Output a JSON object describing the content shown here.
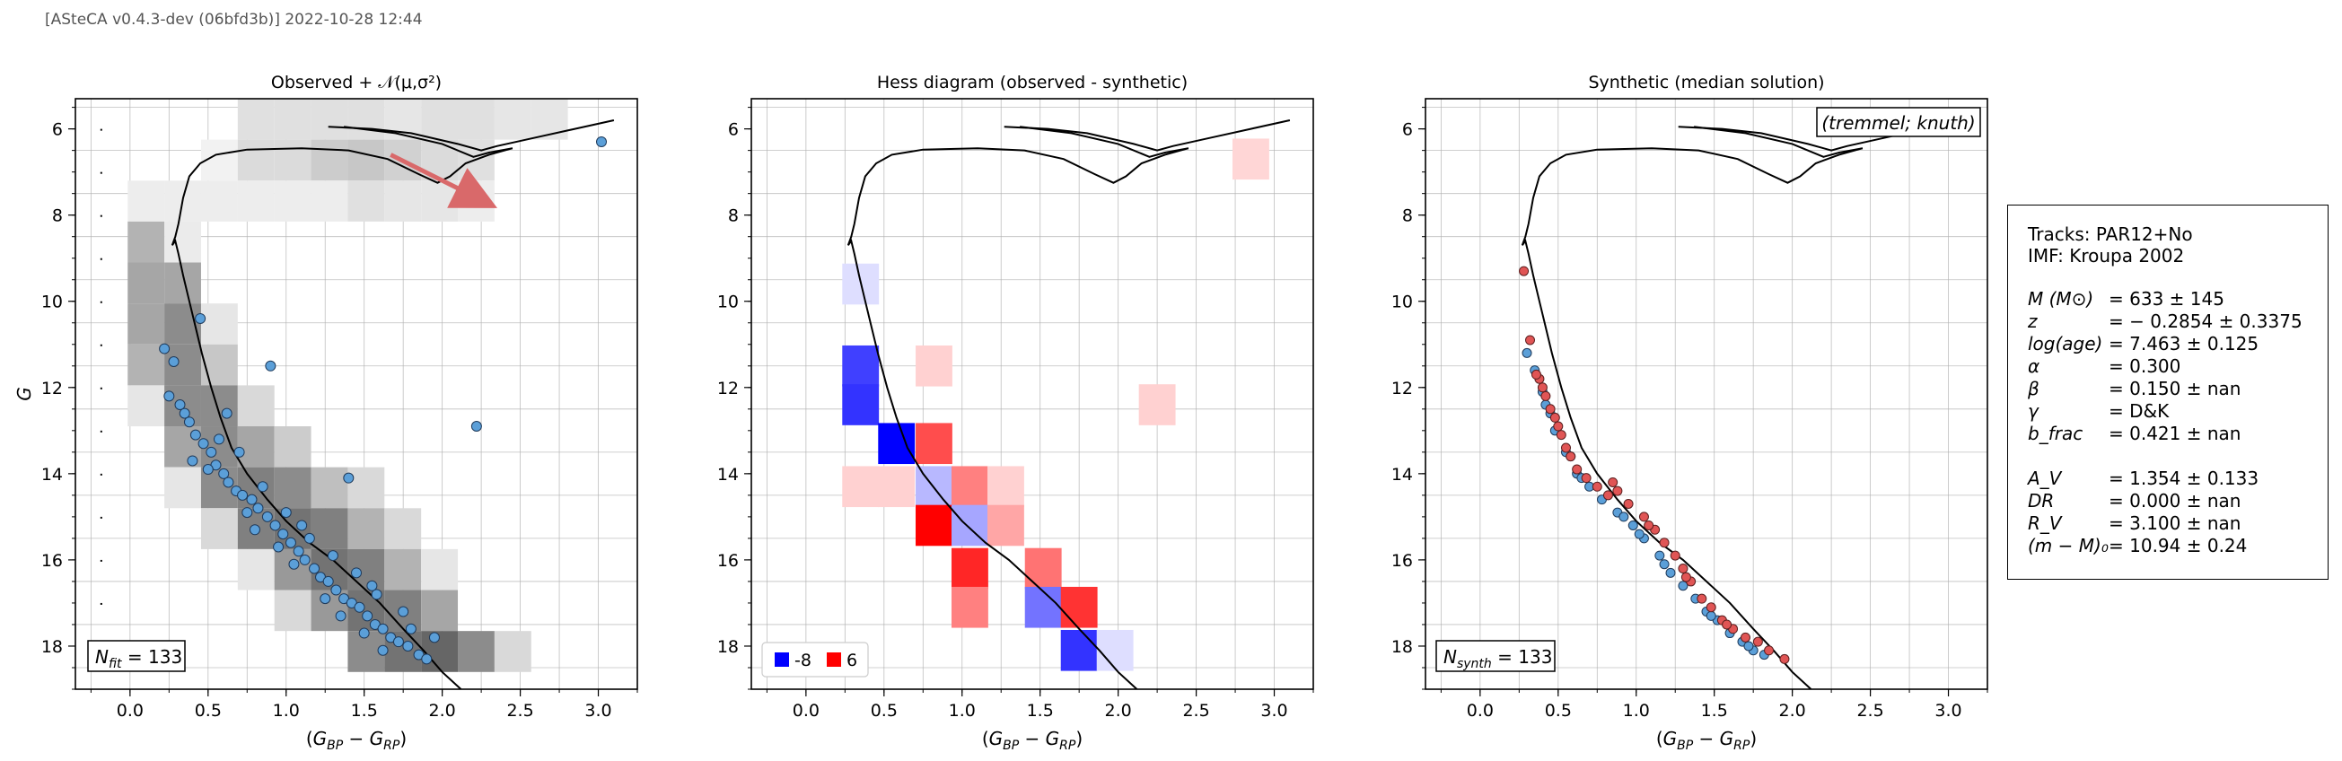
{
  "header": "[ASteCA v0.4.3-dev (06bfd3b)] 2022-10-28 12:44",
  "chart_data": [
    {
      "type": "scatter",
      "title": "Observed + 𝒩(μ,σ²)",
      "xlabel": "(G_BP − G_RP)",
      "ylabel": "G",
      "xlim": [
        -0.35,
        3.25
      ],
      "ylim": [
        19.0,
        5.3
      ],
      "y_inverted": true,
      "xticks": [
        "0.0",
        "0.5",
        "1.0",
        "1.5",
        "2.0",
        "2.5",
        "3.0"
      ],
      "yticks": [
        "6",
        "8",
        "10",
        "12",
        "14",
        "16",
        "18"
      ],
      "grid": true,
      "annotation": "N_fit = 133",
      "background_bins": {
        "x0": -0.25,
        "dx": 0.235,
        "y0": 5.3,
        "dy": 0.95,
        "note": "grayscale 2D density"
      },
      "points": [
        [
          0.45,
          10.4
        ],
        [
          0.22,
          11.1
        ],
        [
          0.28,
          11.4
        ],
        [
          0.25,
          12.2
        ],
        [
          0.32,
          12.4
        ],
        [
          0.35,
          12.6
        ],
        [
          0.38,
          12.8
        ],
        [
          0.42,
          13.1
        ],
        [
          0.47,
          13.3
        ],
        [
          0.52,
          13.5
        ],
        [
          0.4,
          13.7
        ],
        [
          0.55,
          13.8
        ],
        [
          0.6,
          14.0
        ],
        [
          0.63,
          14.2
        ],
        [
          0.68,
          14.4
        ],
        [
          0.72,
          14.5
        ],
        [
          0.78,
          14.6
        ],
        [
          0.82,
          14.8
        ],
        [
          0.88,
          15.0
        ],
        [
          0.93,
          15.2
        ],
        [
          0.98,
          15.4
        ],
        [
          1.03,
          15.6
        ],
        [
          1.08,
          15.8
        ],
        [
          1.12,
          16.0
        ],
        [
          1.18,
          16.2
        ],
        [
          1.22,
          16.4
        ],
        [
          1.27,
          16.5
        ],
        [
          1.32,
          16.7
        ],
        [
          1.37,
          16.9
        ],
        [
          1.42,
          17.0
        ],
        [
          1.47,
          17.1
        ],
        [
          1.52,
          17.3
        ],
        [
          1.57,
          17.5
        ],
        [
          1.62,
          17.6
        ],
        [
          1.67,
          17.8
        ],
        [
          1.72,
          17.9
        ],
        [
          1.78,
          18.0
        ],
        [
          1.85,
          18.2
        ],
        [
          1.9,
          18.3
        ],
        [
          0.7,
          13.5
        ],
        [
          0.85,
          14.3
        ],
        [
          1.0,
          14.9
        ],
        [
          1.15,
          15.5
        ],
        [
          1.3,
          15.9
        ],
        [
          1.45,
          16.3
        ],
        [
          1.58,
          16.8
        ],
        [
          1.75,
          17.2
        ],
        [
          0.9,
          11.5
        ],
        [
          1.4,
          14.1
        ],
        [
          2.22,
          12.9
        ],
        [
          3.02,
          6.3
        ],
        [
          0.57,
          13.2
        ],
        [
          0.75,
          14.9
        ],
        [
          0.95,
          15.7
        ],
        [
          1.05,
          16.1
        ],
        [
          1.25,
          16.9
        ],
        [
          1.35,
          17.3
        ],
        [
          1.5,
          17.7
        ],
        [
          1.62,
          18.1
        ],
        [
          1.8,
          17.6
        ],
        [
          1.95,
          17.8
        ],
        [
          0.62,
          12.6
        ],
        [
          1.1,
          15.2
        ],
        [
          1.55,
          16.6
        ],
        [
          0.5,
          13.9
        ],
        [
          0.8,
          15.3
        ]
      ],
      "isochrone": "single curve"
    },
    {
      "type": "heatmap",
      "title": "Hess diagram (observed - synthetic)",
      "xlabel": "(G_BP − G_RP)",
      "xlim": [
        -0.35,
        3.25
      ],
      "ylim": [
        19.0,
        5.3
      ],
      "xticks": [
        "0.0",
        "0.5",
        "1.0",
        "1.5",
        "2.0",
        "2.5",
        "3.0"
      ],
      "yticks": [
        "6",
        "8",
        "10",
        "12",
        "14",
        "16",
        "18"
      ],
      "legend": [
        {
          "label": "-8",
          "color": "#0000ff"
        },
        {
          "label": "6",
          "color": "#ff0000"
        }
      ],
      "cells": [
        [
          2.85,
          6.7,
          0.16
        ],
        [
          0.35,
          9.6,
          -0.13
        ],
        [
          0.35,
          11.5,
          -0.75
        ],
        [
          0.82,
          11.5,
          0.18
        ],
        [
          2.25,
          12.4,
          0.18
        ],
        [
          0.35,
          12.4,
          -0.8
        ],
        [
          0.58,
          13.3,
          -1.0
        ],
        [
          0.82,
          13.3,
          0.7
        ],
        [
          0.35,
          14.3,
          0.18
        ],
        [
          0.58,
          14.3,
          0.18
        ],
        [
          0.82,
          14.3,
          -0.28
        ],
        [
          1.05,
          14.3,
          0.5
        ],
        [
          1.28,
          14.3,
          0.18
        ],
        [
          0.82,
          15.2,
          1.0
        ],
        [
          1.05,
          15.2,
          -0.35
        ],
        [
          1.28,
          15.2,
          0.35
        ],
        [
          1.05,
          16.2,
          0.85
        ],
        [
          1.52,
          16.2,
          0.55
        ],
        [
          1.05,
          17.1,
          0.5
        ],
        [
          1.52,
          17.1,
          -0.55
        ],
        [
          1.75,
          17.1,
          0.8
        ],
        [
          1.75,
          18.1,
          -0.8
        ],
        [
          1.98,
          18.1,
          -0.13
        ]
      ]
    },
    {
      "type": "scatter",
      "title": "Synthetic (median solution)",
      "xlabel": "(G_BP − G_RP)",
      "xlim": [
        -0.35,
        3.25
      ],
      "ylim": [
        19.0,
        5.3
      ],
      "xticks": [
        "0.0",
        "0.5",
        "1.0",
        "1.5",
        "2.0",
        "2.5",
        "3.0"
      ],
      "yticks": [
        "6",
        "8",
        "10",
        "12",
        "14",
        "16",
        "18"
      ],
      "annotation_bottom": "N_synth = 133",
      "annotation_top": "(tremmel; knuth)",
      "red_points": [
        [
          0.28,
          9.3
        ],
        [
          0.32,
          10.9
        ],
        [
          0.38,
          11.8
        ],
        [
          0.42,
          12.2
        ],
        [
          0.45,
          12.5
        ],
        [
          0.48,
          12.7
        ],
        [
          0.5,
          12.9
        ],
        [
          0.52,
          13.1
        ],
        [
          0.55,
          13.4
        ],
        [
          0.58,
          13.6
        ],
        [
          0.62,
          13.9
        ],
        [
          0.68,
          14.1
        ],
        [
          0.75,
          14.3
        ],
        [
          0.82,
          14.5
        ],
        [
          0.88,
          14.4
        ],
        [
          0.95,
          14.7
        ],
        [
          1.05,
          15.0
        ],
        [
          1.12,
          15.3
        ],
        [
          1.18,
          15.6
        ],
        [
          1.25,
          15.9
        ],
        [
          1.3,
          16.2
        ],
        [
          1.35,
          16.5
        ],
        [
          1.42,
          16.9
        ],
        [
          1.48,
          17.1
        ],
        [
          1.55,
          17.4
        ],
        [
          1.62,
          17.6
        ],
        [
          1.7,
          17.8
        ],
        [
          1.78,
          17.9
        ],
        [
          1.85,
          18.1
        ],
        [
          1.95,
          18.3
        ],
        [
          0.85,
          14.2
        ],
        [
          1.08,
          15.2
        ],
        [
          1.32,
          16.4
        ],
        [
          1.58,
          17.5
        ],
        [
          0.36,
          11.7
        ],
        [
          0.4,
          12.0
        ]
      ],
      "blue_points": [
        [
          0.3,
          11.2
        ],
        [
          0.35,
          11.6
        ],
        [
          0.4,
          12.1
        ],
        [
          0.45,
          12.6
        ],
        [
          0.48,
          13.0
        ],
        [
          0.55,
          13.5
        ],
        [
          0.62,
          14.0
        ],
        [
          0.7,
          14.3
        ],
        [
          0.78,
          14.6
        ],
        [
          0.88,
          14.9
        ],
        [
          0.98,
          15.2
        ],
        [
          1.05,
          15.5
        ],
        [
          1.15,
          15.9
        ],
        [
          1.22,
          16.3
        ],
        [
          1.3,
          16.6
        ],
        [
          1.38,
          16.9
        ],
        [
          1.45,
          17.2
        ],
        [
          1.52,
          17.4
        ],
        [
          1.6,
          17.7
        ],
        [
          1.68,
          17.9
        ],
        [
          1.75,
          18.1
        ],
        [
          1.82,
          18.2
        ],
        [
          0.58,
          13.6
        ],
        [
          0.92,
          15.0
        ],
        [
          1.18,
          16.1
        ],
        [
          1.48,
          17.3
        ],
        [
          1.72,
          18.0
        ],
        [
          0.42,
          12.4
        ],
        [
          0.65,
          14.1
        ],
        [
          1.02,
          15.4
        ]
      ]
    }
  ],
  "params": {
    "tracks": "Tracks: PAR12+No",
    "imf": "IMF: Kroupa 2002",
    "rows": [
      {
        "label": "M (M⊙)",
        "value": "=  633 ± 145"
      },
      {
        "label": "z",
        "value": "=  − 0.2854 ± 0.3375"
      },
      {
        "label": "log(age)",
        "value": "=  7.463 ± 0.125"
      },
      {
        "label": "α",
        "value": "=  0.300"
      },
      {
        "label": "β",
        "value": "=  0.150 ± nan"
      },
      {
        "label": "γ",
        "value": "=  D&K"
      },
      {
        "label": "b_frac",
        "value": "=  0.421 ± nan"
      },
      {
        "label": "A_V",
        "value": "=  1.354 ± 0.133"
      },
      {
        "label": "DR",
        "value": "=  0.000 ± nan"
      },
      {
        "label": "R_V",
        "value": "=  3.100 ± nan"
      },
      {
        "label": "(m − M)₀",
        "value": "=  10.94 ± 0.24"
      }
    ]
  }
}
